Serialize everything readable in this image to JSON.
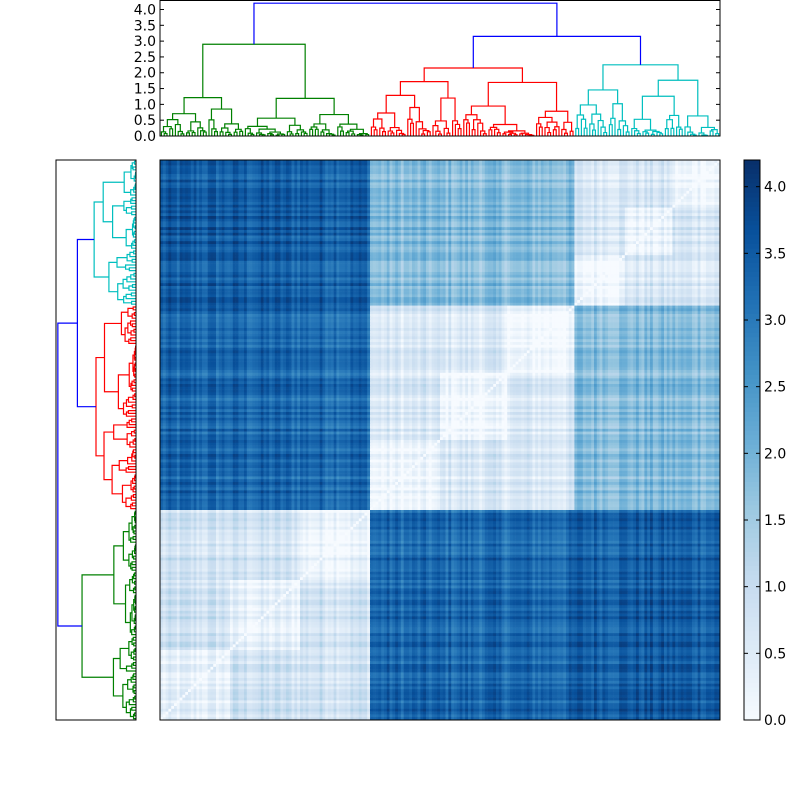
{
  "chart_data": [
    {
      "type": "heatmap",
      "description_role": "clustered distance matrix",
      "title": "",
      "xlabel": "",
      "ylabel": "",
      "n": 200,
      "clusters": [
        {
          "name": "",
          "color": "#008000",
          "size": 75
        },
        {
          "name": "",
          "color": "#ff0000",
          "size": 73
        },
        {
          "name": "",
          "color": "#00bfbf",
          "size": 52
        }
      ],
      "block_distance_ranges": [
        {
          "pair": [
            "green",
            "green"
          ],
          "range": [
            0.0,
            1.0
          ]
        },
        {
          "pair": [
            "red",
            "red"
          ],
          "range": [
            0.0,
            1.0
          ]
        },
        {
          "pair": [
            "cyan",
            "cyan"
          ],
          "range": [
            0.0,
            1.0
          ]
        },
        {
          "pair": [
            "green",
            "red"
          ],
          "range": [
            3.0,
            3.6
          ]
        },
        {
          "pair": [
            "green",
            "cyan"
          ],
          "range": [
            3.0,
            4.2
          ]
        },
        {
          "pair": [
            "red",
            "cyan"
          ],
          "range": [
            1.5,
            2.2
          ]
        }
      ],
      "colormap": "Blues",
      "colorbar": {
        "vmin": 0.0,
        "vmax": 4.2,
        "ticks": [
          "0.0",
          "0.5",
          "1.0",
          "1.5",
          "2.0",
          "2.5",
          "3.0",
          "3.5",
          "4.0"
        ]
      }
    },
    {
      "type": "dendrogram",
      "orientation": "top",
      "ylim": [
        0,
        4.3
      ],
      "yticks": [
        "0.0",
        "0.5",
        "1.0",
        "1.5",
        "2.0",
        "2.5",
        "3.0",
        "3.5",
        "4.0"
      ],
      "root_height": 4.2,
      "top_merges": [
        {
          "children": [
            "green",
            "red+cyan"
          ],
          "height": 4.2,
          "color": "#0000ff"
        },
        {
          "children": [
            "red",
            "cyan"
          ],
          "height": 3.15,
          "color": "#0000ff"
        }
      ],
      "cluster_heights": {
        "green": 2.9,
        "red": 2.15,
        "cyan": 2.25
      }
    },
    {
      "type": "dendrogram",
      "orientation": "left",
      "note_order": [
        "cyan",
        "red",
        "green"
      ]
    }
  ],
  "colors": {
    "link_color": "#0000ff",
    "green": "#008000",
    "red": "#ff0000",
    "cyan": "#00bfbf",
    "axes": "#000000"
  }
}
